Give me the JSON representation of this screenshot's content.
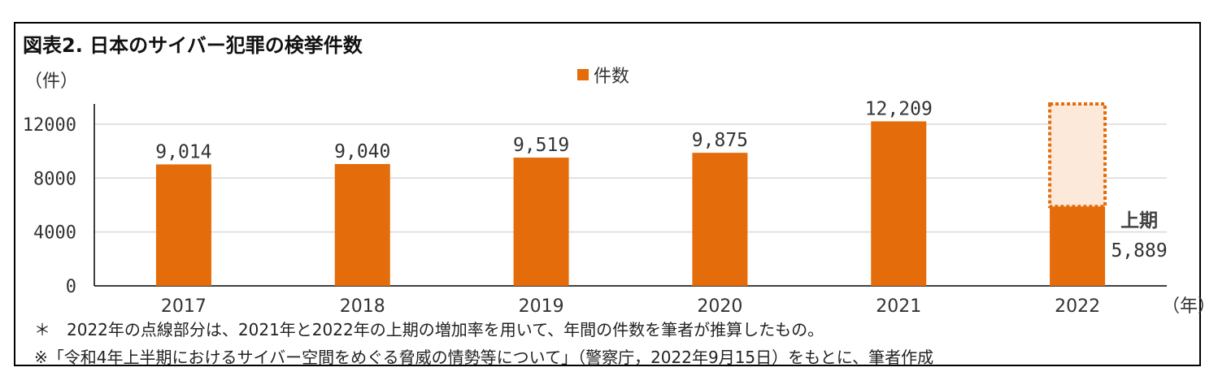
{
  "title": "図表2.  日本のサイバー犯罪の検挙件数",
  "y_unit": "（件）",
  "x_unit": "（年）",
  "legend": {
    "label": "件数"
  },
  "notes": [
    "＊　2022年の点線部分は、2021年と2022年の上期の増加率を用いて、年間の件数を筆者が推算したもの。",
    "※「令和4年上半期におけるサイバー空間をめぐる脅威の情勢等について」（警察庁，2022年9月15日）をもとに、筆者作成"
  ],
  "colors": {
    "bar": "#E46C0A",
    "estimate_fill": "#FCE9DA",
    "grid": "#D9D9D9",
    "axis": "#000000"
  },
  "chart_data": {
    "type": "bar",
    "title": "図表2.  日本のサイバー犯罪の検挙件数",
    "xlabel": "（年）",
    "ylabel": "（件）",
    "categories": [
      "2017",
      "2018",
      "2019",
      "2020",
      "2021",
      "2022"
    ],
    "series": [
      {
        "name": "件数",
        "values": [
          9014,
          9040,
          9519,
          9875,
          12209,
          5889
        ],
        "labels": [
          "9,014",
          "9,040",
          "9,519",
          "9,875",
          "12,209",
          "5,889"
        ]
      }
    ],
    "estimate": {
      "category": "2022",
      "from": 5889,
      "to": 13500,
      "style": "dotted"
    },
    "annotation": {
      "category": "2022",
      "text": "上期"
    },
    "ylim": [
      0,
      13500
    ],
    "yticks": [
      0,
      4000,
      8000,
      12000
    ],
    "grid": true,
    "legend_position": "top-center"
  }
}
